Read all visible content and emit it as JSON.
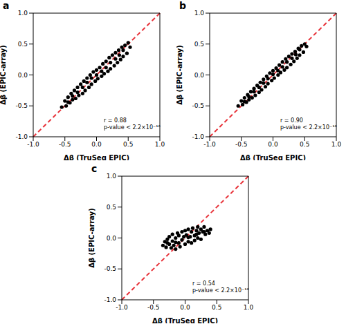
{
  "chart_data": [
    {
      "type": "scatter",
      "title": "a",
      "xlabel": "Δβ (TruSeq EPIC)",
      "ylabel": "Δβ (EPIC-array)",
      "xlim": [
        -1,
        1
      ],
      "ylim": [
        -1,
        1
      ],
      "xticks": [
        {
          "value": -1,
          "label": "-1.0"
        },
        -0.5,
        {
          "value": 0,
          "label": "0.0"
        },
        0.5,
        {
          "value": 1,
          "label": "1.0"
        }
      ],
      "yticks": [
        {
          "value": -1,
          "label": "-1.0"
        },
        -0.5,
        {
          "value": 0,
          "label": "0.0"
        },
        0.5,
        {
          "value": 1,
          "label": "1.0"
        }
      ],
      "annotations": [
        "r = 0.88",
        "p-value < 2.2×10⁻¹⁶"
      ],
      "series": [
        {
          "type": "scatter",
          "color": "#000000",
          "marker": "circle",
          "x": [
            -0.55,
            -0.5,
            -0.48,
            -0.45,
            -0.42,
            -0.4,
            -0.38,
            -0.35,
            -0.33,
            -0.3,
            -0.28,
            -0.25,
            -0.22,
            -0.2,
            -0.18,
            -0.15,
            -0.12,
            -0.1,
            -0.08,
            -0.05,
            -0.02,
            0,
            0.02,
            0.05,
            0.08,
            0.1,
            0.12,
            0.15,
            0.18,
            0.2,
            0.22,
            0.25,
            0.28,
            0.3,
            0.33,
            0.35,
            0.38,
            0.4,
            0.42,
            0.45,
            0.48,
            0.5,
            0.53,
            -0.3,
            -0.15,
            0,
            0.15,
            0.3,
            -0.45,
            0.42,
            -0.22,
            0.08,
            0.22,
            -0.08,
            -0.38,
            0.36
          ],
          "y": [
            -0.52,
            -0.42,
            -0.5,
            -0.36,
            -0.45,
            -0.3,
            -0.4,
            -0.25,
            -0.38,
            -0.2,
            -0.33,
            -0.15,
            -0.3,
            -0.1,
            -0.25,
            -0.05,
            -0.2,
            0,
            -0.15,
            0.05,
            -0.1,
            0.08,
            -0.06,
            0.12,
            -0.02,
            0.18,
            0.02,
            0.22,
            0.06,
            0.28,
            0.1,
            0.32,
            0.15,
            0.36,
            0.2,
            0.4,
            0.25,
            0.45,
            0.3,
            0.48,
            0.35,
            0.52,
            0.45,
            -0.28,
            -0.12,
            0,
            0.12,
            0.26,
            -0.44,
            0.4,
            -0.2,
            0.06,
            0.2,
            -0.05,
            -0.34,
            0.32
          ]
        },
        {
          "type": "line",
          "color": "#e8333a",
          "line_style": "dashed",
          "x": [
            -1,
            1
          ],
          "y": [
            -1,
            1
          ]
        }
      ]
    },
    {
      "type": "scatter",
      "title": "b",
      "xlabel": "Δβ (TruSeq EPIC)",
      "ylabel": "Δβ (EPIC-array)",
      "xlim": [
        -1,
        1
      ],
      "ylim": [
        -1,
        1
      ],
      "xticks": [
        {
          "value": -1,
          "label": "-1.0"
        },
        -0.5,
        {
          "value": 0,
          "label": "0.0"
        },
        0.5,
        {
          "value": 1,
          "label": "1.0"
        }
      ],
      "yticks": [
        {
          "value": -1,
          "label": "-1.0"
        },
        -0.5,
        {
          "value": 0,
          "label": "0.0"
        },
        0.5,
        {
          "value": 1,
          "label": "1.0"
        }
      ],
      "annotations": [
        "r = 0.90",
        "p-value < 2.2×10⁻¹⁶"
      ],
      "series": [
        {
          "type": "scatter",
          "color": "#000000",
          "marker": "circle",
          "x": [
            -0.55,
            -0.5,
            -0.48,
            -0.45,
            -0.42,
            -0.4,
            -0.38,
            -0.35,
            -0.33,
            -0.3,
            -0.28,
            -0.25,
            -0.22,
            -0.2,
            -0.18,
            -0.15,
            -0.12,
            -0.1,
            -0.08,
            -0.05,
            -0.02,
            0,
            0.02,
            0.05,
            0.08,
            0.1,
            0.12,
            0.15,
            0.18,
            0.2,
            0.22,
            0.25,
            0.28,
            0.3,
            0.33,
            0.35,
            0.38,
            0.4,
            0.42,
            0.45,
            0.48,
            0.5,
            0.53,
            -0.3,
            -0.15,
            0,
            0.15,
            0.3,
            -0.45,
            0.42,
            -0.22,
            0.08,
            0.22,
            -0.08,
            -0.38,
            0.36
          ],
          "y": [
            -0.5,
            -0.42,
            -0.48,
            -0.37,
            -0.44,
            -0.32,
            -0.4,
            -0.27,
            -0.37,
            -0.22,
            -0.33,
            -0.17,
            -0.28,
            -0.12,
            -0.24,
            -0.07,
            -0.19,
            -0.02,
            -0.14,
            0.03,
            -0.09,
            0.07,
            -0.05,
            0.11,
            0,
            0.16,
            0.04,
            0.21,
            0.08,
            0.26,
            0.12,
            0.3,
            0.17,
            0.34,
            0.22,
            0.38,
            0.27,
            0.43,
            0.32,
            0.47,
            0.37,
            0.5,
            0.46,
            -0.27,
            -0.13,
            0.01,
            0.13,
            0.27,
            -0.43,
            0.41,
            -0.2,
            0.07,
            0.21,
            -0.06,
            -0.35,
            0.33
          ]
        },
        {
          "type": "line",
          "color": "#e8333a",
          "line_style": "dashed",
          "x": [
            -1,
            1
          ],
          "y": [
            -1,
            1
          ]
        }
      ]
    },
    {
      "type": "scatter",
      "title": "c",
      "xlabel": "Δβ (TruSeq EPIC)",
      "ylabel": "Δβ (EPIC-array)",
      "xlim": [
        -1,
        1
      ],
      "ylim": [
        -1,
        1
      ],
      "xticks": [
        {
          "value": -1,
          "label": "-1.0"
        },
        -0.5,
        {
          "value": 0,
          "label": "0.0"
        },
        0.5,
        {
          "value": 1,
          "label": "1.0"
        }
      ],
      "yticks": [
        {
          "value": -1,
          "label": "-1.0"
        },
        -0.5,
        {
          "value": 0,
          "label": "0.0"
        },
        0.5,
        {
          "value": 1,
          "label": "1.0"
        }
      ],
      "annotations": [
        "r = 0.54",
        "p-value < 2.2×10⁻¹⁶"
      ],
      "series": [
        {
          "type": "scatter",
          "color": "#000000",
          "marker": "circle",
          "x": [
            -0.35,
            -0.32,
            -0.3,
            -0.28,
            -0.25,
            -0.25,
            -0.22,
            -0.2,
            -0.2,
            -0.18,
            -0.15,
            -0.15,
            -0.12,
            -0.1,
            -0.1,
            -0.08,
            -0.05,
            -0.05,
            -0.02,
            0,
            0,
            0.02,
            0.05,
            0.05,
            0.08,
            0.1,
            0.1,
            0.12,
            0.15,
            0.15,
            0.18,
            0.2,
            0.2,
            0.22,
            0.25,
            0.25,
            0.28,
            0.3,
            0.32,
            0.35,
            0.38,
            0.4,
            -0.15,
            0.05,
            0.18,
            -0.28,
            0.3
          ],
          "y": [
            -0.12,
            -0.06,
            -0.15,
            -0.02,
            -0.1,
            0.02,
            -0.16,
            -0.05,
            0.06,
            -0.12,
            0,
            -0.18,
            0.08,
            -0.08,
            0.04,
            -0.14,
            0.1,
            -0.03,
            0.02,
            -0.1,
            0.12,
            0.05,
            -0.06,
            0.14,
            0.02,
            -0.08,
            0.1,
            0.16,
            0.04,
            -0.04,
            0.12,
            0.18,
            0,
            0.08,
            0.14,
            -0.02,
            0.1,
            0.18,
            0.06,
            0.12,
            0.08,
            0.14,
            -0.07,
            0.01,
            0.06,
            -0.08,
            0.1
          ]
        },
        {
          "type": "line",
          "color": "#e8333a",
          "line_style": "dashed",
          "x": [
            -1,
            1
          ],
          "y": [
            -1,
            1
          ]
        }
      ]
    }
  ]
}
